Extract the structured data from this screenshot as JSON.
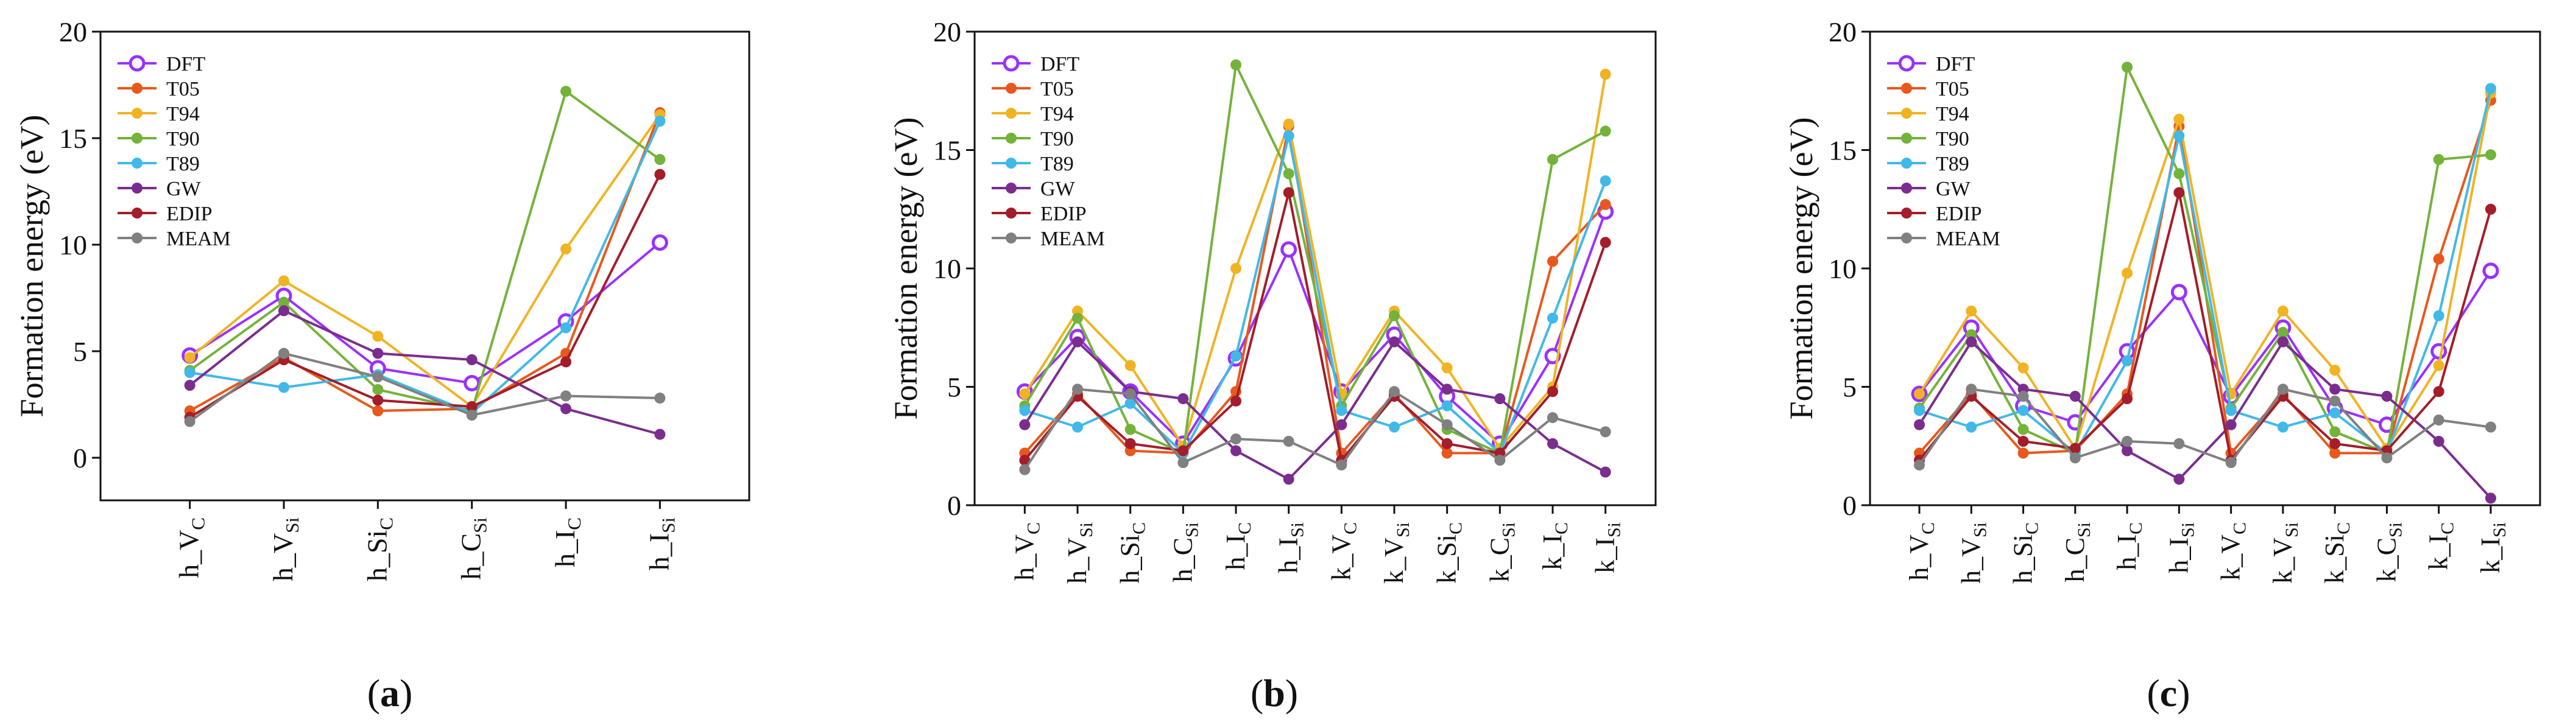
{
  "chart_data": [
    {
      "type": "line",
      "panel_label": "(a)",
      "ylabel": "Formation energy (eV)",
      "ylim": [
        -2,
        20
      ],
      "yticks": [
        0,
        5,
        10,
        15,
        20
      ],
      "ytick_labels": [
        "0",
        "5",
        "10",
        "15",
        "20"
      ],
      "categories": [
        {
          "base": "h_V",
          "sub": "C"
        },
        {
          "base": "h_V",
          "sub": "Si"
        },
        {
          "base": "h_Si",
          "sub": "C"
        },
        {
          "base": "h_C",
          "sub": "Si"
        },
        {
          "base": "h_I",
          "sub": "C"
        },
        {
          "base": "h_I",
          "sub": "Si"
        }
      ],
      "legend_position": "top-left",
      "series": [
        {
          "name": "DFT",
          "color": "#9b30ff",
          "hollow": true,
          "values": [
            4.8,
            7.6,
            4.2,
            3.5,
            6.4,
            10.1
          ]
        },
        {
          "name": "T05",
          "color": "#e8581c",
          "hollow": false,
          "values": [
            2.2,
            4.7,
            2.2,
            2.3,
            4.9,
            16.2
          ]
        },
        {
          "name": "T94",
          "color": "#f0b323",
          "hollow": false,
          "values": [
            4.7,
            8.3,
            5.7,
            2.4,
            9.8,
            16.1
          ]
        },
        {
          "name": "T90",
          "color": "#73b33a",
          "hollow": false,
          "values": [
            4.1,
            7.3,
            3.2,
            2.2,
            17.2,
            14.0
          ]
        },
        {
          "name": "T89",
          "color": "#41b9e8",
          "hollow": false,
          "values": [
            4.0,
            3.3,
            3.9,
            2.1,
            6.1,
            15.8
          ]
        },
        {
          "name": "GW",
          "color": "#7b2d8e",
          "hollow": false,
          "values": [
            3.4,
            6.9,
            4.9,
            4.6,
            2.3,
            1.1
          ]
        },
        {
          "name": "EDIP",
          "color": "#a31d2b",
          "hollow": false,
          "values": [
            1.9,
            4.6,
            2.7,
            2.4,
            4.5,
            13.3
          ]
        },
        {
          "name": "MEAM",
          "color": "#808080",
          "hollow": false,
          "values": [
            1.7,
            4.9,
            3.8,
            2.0,
            2.9,
            2.8
          ]
        }
      ]
    },
    {
      "type": "line",
      "panel_label": "(b)",
      "ylabel": "Formation energy (eV)",
      "ylim": [
        0,
        20
      ],
      "yticks": [
        0,
        5,
        10,
        15,
        20
      ],
      "ytick_labels": [
        "0",
        "5",
        "10",
        "15",
        "20"
      ],
      "categories": [
        {
          "base": "h_V",
          "sub": "C"
        },
        {
          "base": "h_V",
          "sub": "Si"
        },
        {
          "base": "h_Si",
          "sub": "C"
        },
        {
          "base": "h_C",
          "sub": "Si"
        },
        {
          "base": "h_I",
          "sub": "C"
        },
        {
          "base": "h_I",
          "sub": "Si"
        },
        {
          "base": "k_V",
          "sub": "C"
        },
        {
          "base": "k_V",
          "sub": "Si"
        },
        {
          "base": "k_Si",
          "sub": "C"
        },
        {
          "base": "k_C",
          "sub": "Si"
        },
        {
          "base": "k_I",
          "sub": "C"
        },
        {
          "base": "k_I",
          "sub": "Si"
        }
      ],
      "legend_position": "top-left",
      "series": [
        {
          "name": "DFT",
          "color": "#9b30ff",
          "hollow": true,
          "values": [
            4.8,
            7.1,
            4.8,
            2.6,
            6.2,
            10.8,
            4.8,
            7.2,
            4.6,
            2.6,
            6.3,
            12.4
          ]
        },
        {
          "name": "T05",
          "color": "#e8581c",
          "hollow": false,
          "values": [
            2.2,
            4.7,
            2.3,
            2.2,
            4.8,
            16.0,
            2.2,
            4.7,
            2.2,
            2.2,
            10.3,
            12.7
          ]
        },
        {
          "name": "T94",
          "color": "#f0b323",
          "hollow": false,
          "values": [
            4.7,
            8.2,
            5.9,
            2.5,
            10.0,
            16.1,
            4.7,
            8.2,
            5.8,
            2.4,
            5.0,
            18.2
          ]
        },
        {
          "name": "T90",
          "color": "#73b33a",
          "hollow": false,
          "values": [
            4.2,
            7.9,
            3.2,
            2.2,
            18.6,
            14.0,
            4.2,
            8.0,
            3.2,
            2.2,
            14.6,
            15.8
          ]
        },
        {
          "name": "T89",
          "color": "#41b9e8",
          "hollow": false,
          "values": [
            4.0,
            3.3,
            4.3,
            2.2,
            6.3,
            15.6,
            4.0,
            3.3,
            4.2,
            2.2,
            7.9,
            13.7
          ]
        },
        {
          "name": "GW",
          "color": "#7b2d8e",
          "hollow": false,
          "values": [
            3.4,
            6.9,
            4.8,
            4.5,
            2.3,
            1.1,
            3.4,
            6.9,
            4.9,
            4.5,
            2.6,
            1.4
          ]
        },
        {
          "name": "EDIP",
          "color": "#a31d2b",
          "hollow": false,
          "values": [
            1.9,
            4.6,
            2.6,
            2.3,
            4.4,
            13.2,
            1.9,
            4.6,
            2.6,
            2.2,
            4.8,
            11.1
          ]
        },
        {
          "name": "MEAM",
          "color": "#808080",
          "hollow": false,
          "values": [
            1.5,
            4.9,
            4.7,
            1.8,
            2.8,
            2.7,
            1.7,
            4.8,
            3.4,
            1.9,
            3.7,
            3.1
          ]
        }
      ]
    },
    {
      "type": "line",
      "panel_label": "(c)",
      "ylabel": "Formation energy (eV)",
      "ylim": [
        0,
        20
      ],
      "yticks": [
        0,
        5,
        10,
        15,
        20
      ],
      "ytick_labels": [
        "0",
        "5",
        "10",
        "15",
        "20"
      ],
      "categories": [
        {
          "base": "h_V",
          "sub": "C"
        },
        {
          "base": "h_V",
          "sub": "Si"
        },
        {
          "base": "h_Si",
          "sub": "C"
        },
        {
          "base": "h_C",
          "sub": "Si"
        },
        {
          "base": "h_I",
          "sub": "C"
        },
        {
          "base": "h_I",
          "sub": "Si"
        },
        {
          "base": "k_V",
          "sub": "C"
        },
        {
          "base": "k_V",
          "sub": "Si"
        },
        {
          "base": "k_Si",
          "sub": "C"
        },
        {
          "base": "k_C",
          "sub": "Si"
        },
        {
          "base": "k_I",
          "sub": "C"
        },
        {
          "base": "k_I",
          "sub": "Si"
        }
      ],
      "legend_position": "top-left",
      "series": [
        {
          "name": "DFT",
          "color": "#9b30ff",
          "hollow": true,
          "values": [
            4.7,
            7.5,
            4.2,
            3.5,
            6.5,
            9.0,
            4.6,
            7.5,
            4.1,
            3.4,
            6.5,
            9.9
          ]
        },
        {
          "name": "T05",
          "color": "#e8581c",
          "hollow": false,
          "values": [
            2.2,
            4.7,
            2.2,
            2.3,
            4.7,
            16.0,
            2.2,
            4.7,
            2.2,
            2.2,
            10.4,
            17.1
          ]
        },
        {
          "name": "T94",
          "color": "#f0b323",
          "hollow": false,
          "values": [
            4.7,
            8.2,
            5.8,
            2.4,
            9.8,
            16.3,
            4.7,
            8.2,
            5.7,
            2.4,
            5.9,
            17.4
          ]
        },
        {
          "name": "T90",
          "color": "#73b33a",
          "hollow": false,
          "values": [
            4.1,
            7.2,
            3.2,
            2.2,
            18.5,
            14.0,
            4.1,
            7.3,
            3.1,
            2.2,
            14.6,
            14.8
          ]
        },
        {
          "name": "T89",
          "color": "#41b9e8",
          "hollow": false,
          "values": [
            4.0,
            3.3,
            4.0,
            2.2,
            6.1,
            15.6,
            4.0,
            3.3,
            3.9,
            2.2,
            8.0,
            17.6
          ]
        },
        {
          "name": "GW",
          "color": "#7b2d8e",
          "hollow": false,
          "values": [
            3.4,
            6.9,
            4.9,
            4.6,
            2.3,
            1.1,
            3.4,
            6.9,
            4.9,
            4.6,
            2.7,
            0.3
          ]
        },
        {
          "name": "EDIP",
          "color": "#a31d2b",
          "hollow": false,
          "values": [
            1.9,
            4.6,
            2.7,
            2.4,
            4.5,
            13.2,
            1.9,
            4.6,
            2.6,
            2.3,
            4.8,
            12.5
          ]
        },
        {
          "name": "MEAM",
          "color": "#808080",
          "hollow": false,
          "values": [
            1.7,
            4.9,
            4.6,
            2.0,
            2.7,
            2.6,
            1.8,
            4.9,
            4.4,
            2.0,
            3.6,
            3.3
          ]
        }
      ]
    }
  ]
}
